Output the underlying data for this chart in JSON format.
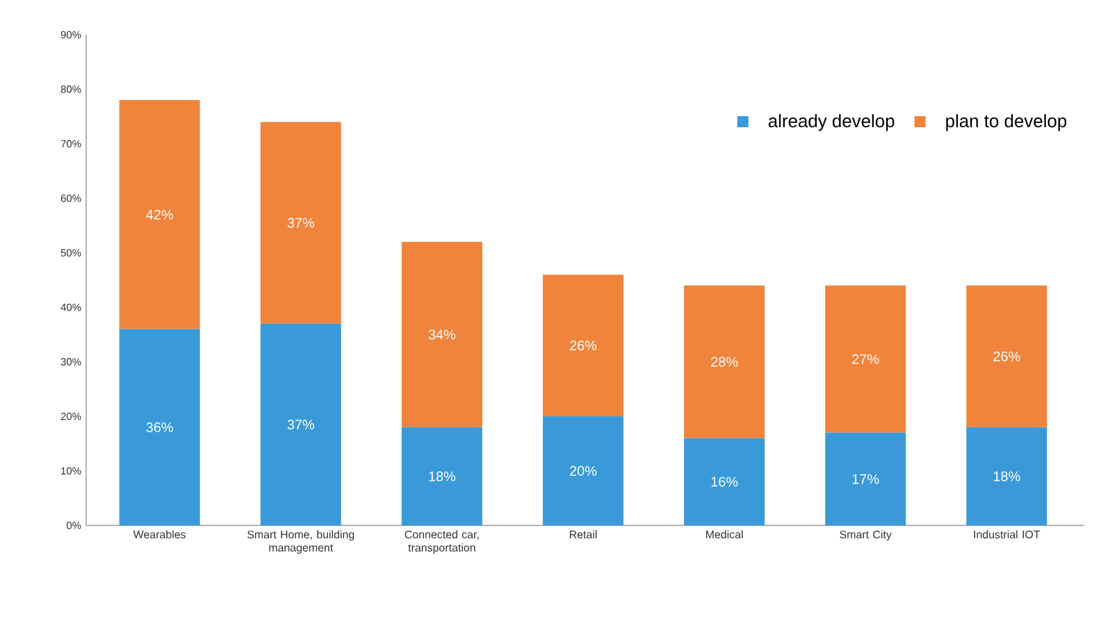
{
  "chart_data": {
    "type": "bar",
    "stacked": true,
    "categories": [
      "Wearables",
      "Smart Home, building management",
      "Connected car, transportation",
      "Retail",
      "Medical",
      "Smart City",
      "Industrial IOT"
    ],
    "series": [
      {
        "name": "already develop",
        "color": "#3a9ad9",
        "values": [
          36,
          37,
          18,
          20,
          16,
          17,
          18
        ],
        "value_labels": [
          "36%",
          "37%",
          "18%",
          "20%",
          "16%",
          "17%",
          "18%"
        ]
      },
      {
        "name": "plan to develop",
        "color": "#f0843c",
        "values": [
          42,
          37,
          34,
          26,
          28,
          27,
          26
        ],
        "value_labels": [
          "42%",
          "37%",
          "34%",
          "26%",
          "28%",
          "27%",
          "26%"
        ]
      }
    ],
    "ylim": [
      0,
      90
    ],
    "yticks": [
      {
        "value": 0,
        "label": "0%"
      },
      {
        "value": 10,
        "label": "10%"
      },
      {
        "value": 20,
        "label": "20%"
      },
      {
        "value": 30,
        "label": "30%"
      },
      {
        "value": 40,
        "label": "40%"
      },
      {
        "value": 50,
        "label": "50%"
      },
      {
        "value": 60,
        "label": "60%"
      },
      {
        "value": 70,
        "label": "70%"
      },
      {
        "value": 80,
        "label": "80%"
      },
      {
        "value": 90,
        "label": "90%"
      }
    ],
    "grid": false,
    "legend": "top right"
  }
}
